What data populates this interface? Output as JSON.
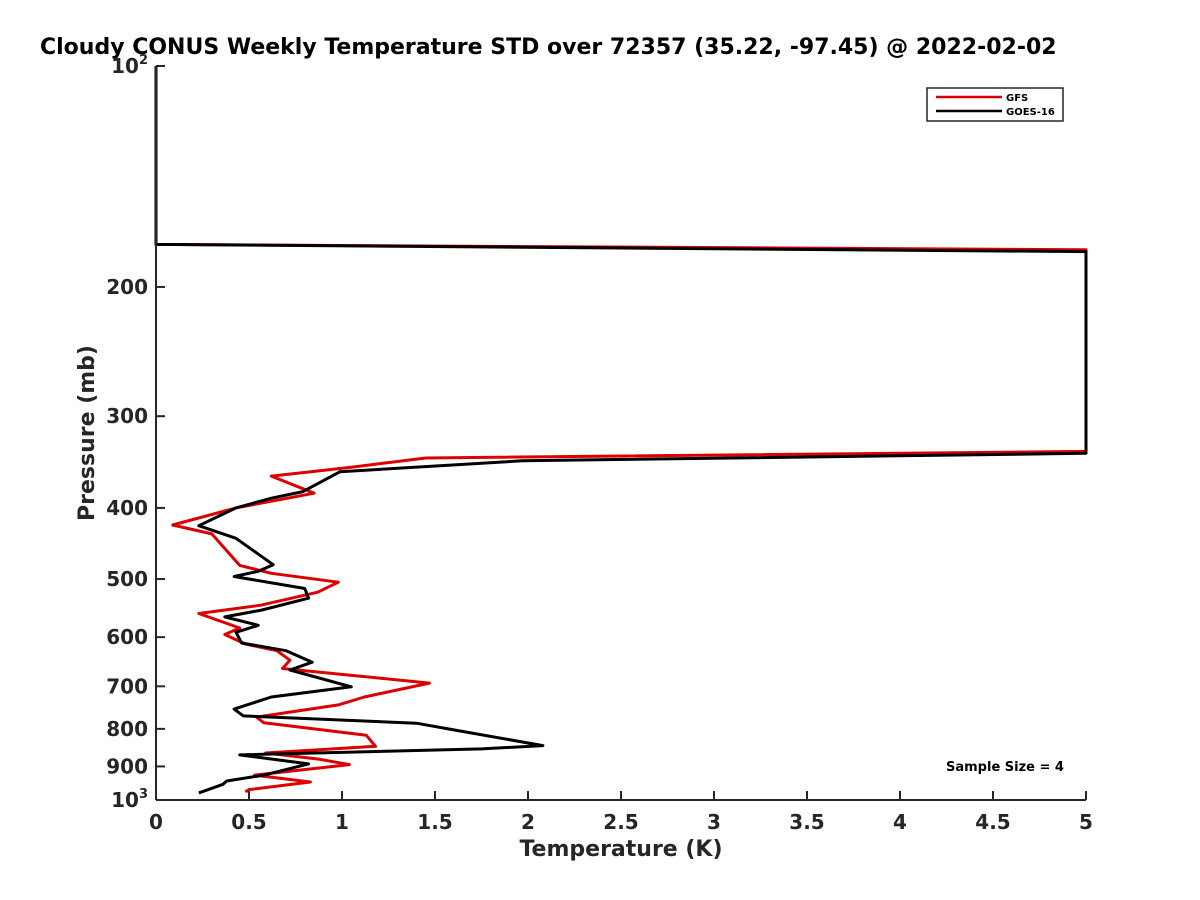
{
  "chart_data": {
    "type": "line",
    "title": "Cloudy CONUS Weekly Temperature STD over 72357 (35.22, -97.45) @ 2022-02-02",
    "xlabel": "Temperature (K)",
    "ylabel": "Pressure (mb)",
    "xlim": [
      0,
      5
    ],
    "ylim": [
      100,
      1000
    ],
    "y_scale": "log",
    "y_reversed": true,
    "x_ticks": [
      {
        "value": 0,
        "label": "0"
      },
      {
        "value": 0.5,
        "label": "0.5"
      },
      {
        "value": 1,
        "label": "1"
      },
      {
        "value": 1.5,
        "label": "1.5"
      },
      {
        "value": 2,
        "label": "2"
      },
      {
        "value": 2.5,
        "label": "2.5"
      },
      {
        "value": 3,
        "label": "3"
      },
      {
        "value": 3.5,
        "label": "3.5"
      },
      {
        "value": 4,
        "label": "4"
      },
      {
        "value": 4.5,
        "label": "4.5"
      },
      {
        "value": 5,
        "label": "5"
      }
    ],
    "y_ticks": [
      {
        "value": 100,
        "base": "10",
        "exp": "2"
      },
      {
        "value": 200,
        "base": "200",
        "exp": ""
      },
      {
        "value": 300,
        "base": "300",
        "exp": ""
      },
      {
        "value": 400,
        "base": "400",
        "exp": ""
      },
      {
        "value": 500,
        "base": "500",
        "exp": ""
      },
      {
        "value": 600,
        "base": "600",
        "exp": ""
      },
      {
        "value": 700,
        "base": "700",
        "exp": ""
      },
      {
        "value": 800,
        "base": "800",
        "exp": ""
      },
      {
        "value": 900,
        "base": "900",
        "exp": ""
      },
      {
        "value": 1000,
        "base": "10",
        "exp": "3"
      }
    ],
    "grid": false,
    "legend_position": "top-right",
    "annotation": "Sample Size = 4",
    "series": [
      {
        "name": "GFS",
        "color": "#dd0000",
        "points": [
          [
            0,
            100
          ],
          [
            0,
            175
          ],
          [
            5,
            178
          ],
          [
            5,
            335
          ],
          [
            1.45,
            342
          ],
          [
            1.05,
            352
          ],
          [
            0.62,
            362
          ],
          [
            0.85,
            382
          ],
          [
            0.43,
            400
          ],
          [
            0.09,
            422
          ],
          [
            0.3,
            434
          ],
          [
            0.45,
            479
          ],
          [
            0.62,
            491
          ],
          [
            0.98,
            505
          ],
          [
            0.87,
            521
          ],
          [
            0.56,
            543
          ],
          [
            0.23,
            557
          ],
          [
            0.45,
            583
          ],
          [
            0.37,
            595
          ],
          [
            0.48,
            613
          ],
          [
            0.65,
            626
          ],
          [
            0.72,
            645
          ],
          [
            0.68,
            662
          ],
          [
            1.47,
            693
          ],
          [
            1.12,
            724
          ],
          [
            0.98,
            742
          ],
          [
            0.54,
            771
          ],
          [
            0.58,
            785
          ],
          [
            1.13,
            816
          ],
          [
            1.18,
            845
          ],
          [
            0.59,
            863
          ],
          [
            0.88,
            880
          ],
          [
            1.04,
            895
          ],
          [
            0.53,
            925
          ],
          [
            0.83,
            945
          ],
          [
            0.5,
            968
          ],
          [
            0.48,
            975
          ]
        ]
      },
      {
        "name": "GOES-16",
        "color": "#000000",
        "points": [
          [
            0,
            100
          ],
          [
            0,
            175
          ],
          [
            5,
            179
          ],
          [
            5,
            337
          ],
          [
            1.97,
            345
          ],
          [
            0.99,
            357
          ],
          [
            0.79,
            380
          ],
          [
            0.62,
            388
          ],
          [
            0.43,
            400
          ],
          [
            0.23,
            423
          ],
          [
            0.43,
            440
          ],
          [
            0.63,
            478
          ],
          [
            0.55,
            488
          ],
          [
            0.42,
            496
          ],
          [
            0.8,
            515
          ],
          [
            0.82,
            531
          ],
          [
            0.57,
            551
          ],
          [
            0.37,
            563
          ],
          [
            0.55,
            578
          ],
          [
            0.43,
            591
          ],
          [
            0.46,
            611
          ],
          [
            0.7,
            626
          ],
          [
            0.84,
            649
          ],
          [
            0.72,
            665
          ],
          [
            1.05,
            701
          ],
          [
            0.62,
            724
          ],
          [
            0.42,
            752
          ],
          [
            0.47,
            768
          ],
          [
            1.4,
            786
          ],
          [
            1.62,
            804
          ],
          [
            2.08,
            843
          ],
          [
            1.75,
            852
          ],
          [
            0.45,
            868
          ],
          [
            0.82,
            893
          ],
          [
            0.58,
            925
          ],
          [
            0.38,
            942
          ],
          [
            0.36,
            952
          ],
          [
            0.23,
            978
          ]
        ]
      }
    ]
  }
}
